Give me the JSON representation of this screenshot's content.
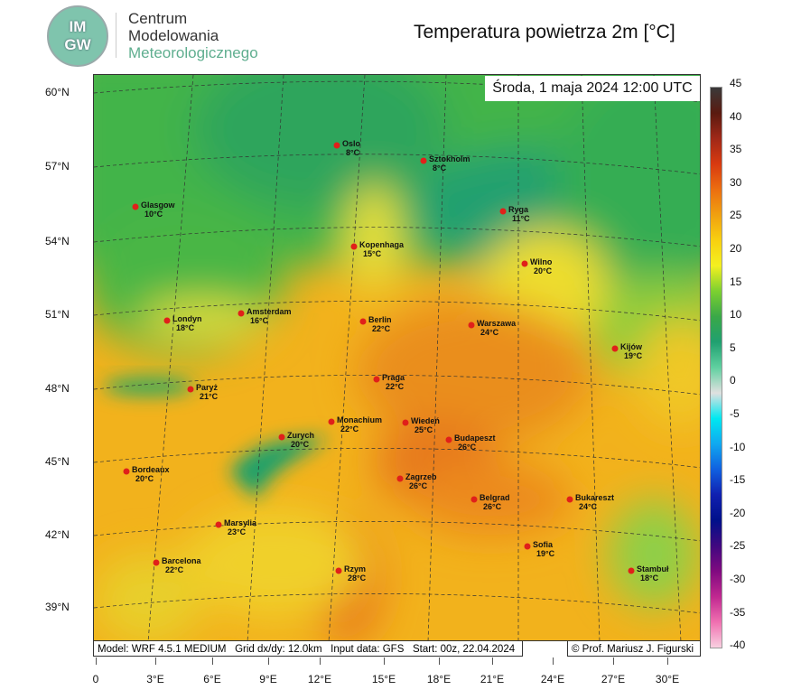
{
  "header": {
    "logo_text_top": "IM",
    "logo_text_bottom": "GW",
    "org_line1": "Centrum",
    "org_line2": "Modelowania",
    "org_line3": "Meteorologicznego",
    "title": "Temperatura powietrza 2m [°C]"
  },
  "map": {
    "valid_time": "Środa, 1 maja 2024 12:00 UTC",
    "latitudes": [
      "60°N",
      "57°N",
      "54°N",
      "51°N",
      "48°N",
      "45°N",
      "42°N",
      "39°N"
    ],
    "longitudes": [
      "0",
      "3°E",
      "6°E",
      "9°E",
      "12°E",
      "15°E",
      "18°E",
      "21°E",
      "24°E",
      "27°E",
      "30°E"
    ],
    "cities": [
      {
        "name": "Oslo",
        "temp": "8°C"
      },
      {
        "name": "Sztokholm",
        "temp": "8°C"
      },
      {
        "name": "Glasgow",
        "temp": "10°C"
      },
      {
        "name": "Ryga",
        "temp": "11°C"
      },
      {
        "name": "Kopenhaga",
        "temp": "15°C"
      },
      {
        "name": "Wilno",
        "temp": "20°C"
      },
      {
        "name": "Amsterdam",
        "temp": "16°C"
      },
      {
        "name": "Londyn",
        "temp": "18°C"
      },
      {
        "name": "Berlin",
        "temp": "22°C"
      },
      {
        "name": "Warszawa",
        "temp": "24°C"
      },
      {
        "name": "Kijów",
        "temp": "19°C"
      },
      {
        "name": "Praga",
        "temp": "22°C"
      },
      {
        "name": "Paryż",
        "temp": "21°C"
      },
      {
        "name": "Monachium",
        "temp": "22°C"
      },
      {
        "name": "Wiedeń",
        "temp": "25°C"
      },
      {
        "name": "Zurych",
        "temp": "20°C"
      },
      {
        "name": "Budapeszt",
        "temp": "26°C"
      },
      {
        "name": "Bordeaux",
        "temp": "20°C"
      },
      {
        "name": "Zagrzeb",
        "temp": "26°C"
      },
      {
        "name": "Belgrad",
        "temp": "26°C"
      },
      {
        "name": "Bukareszt",
        "temp": "24°C"
      },
      {
        "name": "Marsylia",
        "temp": "23°C"
      },
      {
        "name": "Sofia",
        "temp": "19°C"
      },
      {
        "name": "Barcelona",
        "temp": "22°C"
      },
      {
        "name": "Rzym",
        "temp": "28°C"
      },
      {
        "name": "Stambuł",
        "temp": "18°C"
      }
    ]
  },
  "footer": {
    "model": "Model: WRF 4.5.1 MEDIUM   Grid dx/dy: 12.0km   Input data: GFS   Start: 00z, 22.04.2024",
    "copyright": "© Prof. Mariusz J. Figurski"
  },
  "colorbar": {
    "labels": [
      "45",
      "40",
      "35",
      "30",
      "25",
      "20",
      "15",
      "10",
      "5",
      "0",
      "-5",
      "-10",
      "-15",
      "-20",
      "-25",
      "-30",
      "-35",
      "-40"
    ],
    "unit": "°C"
  }
}
